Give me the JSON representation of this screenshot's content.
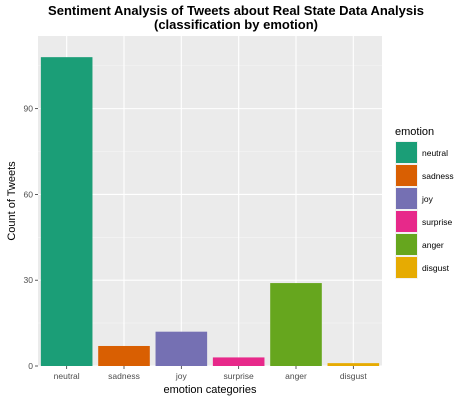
{
  "chart_data": {
    "type": "bar",
    "title": "Sentiment Analysis of Tweets about Real State Data Analysis",
    "subtitle": "(classification by emotion)",
    "xlabel": "emotion categories",
    "ylabel": "Count of Tweets",
    "categories": [
      "neutral",
      "sadness",
      "joy",
      "surprise",
      "anger",
      "disgust"
    ],
    "values": [
      108,
      7,
      12,
      3,
      29,
      1
    ],
    "colors": [
      "#1b9e77",
      "#d95f02",
      "#7570b3",
      "#e7298a",
      "#66a61e",
      "#e6ab02"
    ],
    "ylim": [
      0,
      115.4
    ],
    "yticks": [
      0,
      30,
      60,
      90
    ],
    "grid": true,
    "background": "#ebebeb",
    "legend": {
      "title": "emotion",
      "placement": "right",
      "entries": [
        "neutral",
        "sadness",
        "joy",
        "surprise",
        "anger",
        "disgust"
      ]
    }
  }
}
